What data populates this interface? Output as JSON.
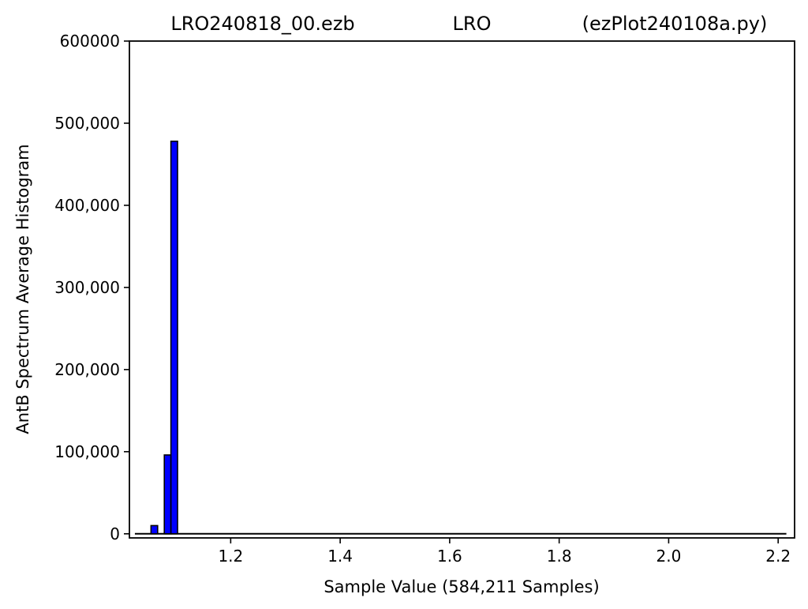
{
  "chart_data": {
    "type": "bar",
    "title": {
      "left": "LRO240818_00.ezb",
      "center": "LRO",
      "right": "(ezPlot240108a.py)"
    },
    "xlabel": "Sample Value (584,211 Samples)",
    "ylabel": "AntB Spectrum Average Histogram",
    "xlim": [
      1.015,
      2.23
    ],
    "ylim": [
      -5000,
      600000
    ],
    "x_ticks": [
      1.2,
      1.4,
      1.6,
      1.8,
      2.0,
      2.2
    ],
    "x_tick_labels": [
      "1.2",
      "1.4",
      "1.6",
      "1.8",
      "2.0",
      "2.2"
    ],
    "y_ticks": [
      0,
      100000,
      200000,
      300000,
      400000,
      500000,
      600000
    ],
    "y_tick_labels": [
      "0",
      "100,000",
      "200,000",
      "300,000",
      "400,000",
      "500,000",
      "600000"
    ],
    "bar_width": 0.0121,
    "bars": [
      {
        "x": 1.0605,
        "value": 10000
      },
      {
        "x": 1.0848,
        "value": 96000
      },
      {
        "x": 1.0969,
        "value": 478000
      }
    ],
    "baseline": {
      "x_start": 1.025,
      "x_end": 2.215,
      "value": 0
    },
    "colors": {
      "bar_fill": "#0000ff",
      "bar_edge": "#000000",
      "line": "#000000"
    },
    "grid": false,
    "legend": "none"
  }
}
